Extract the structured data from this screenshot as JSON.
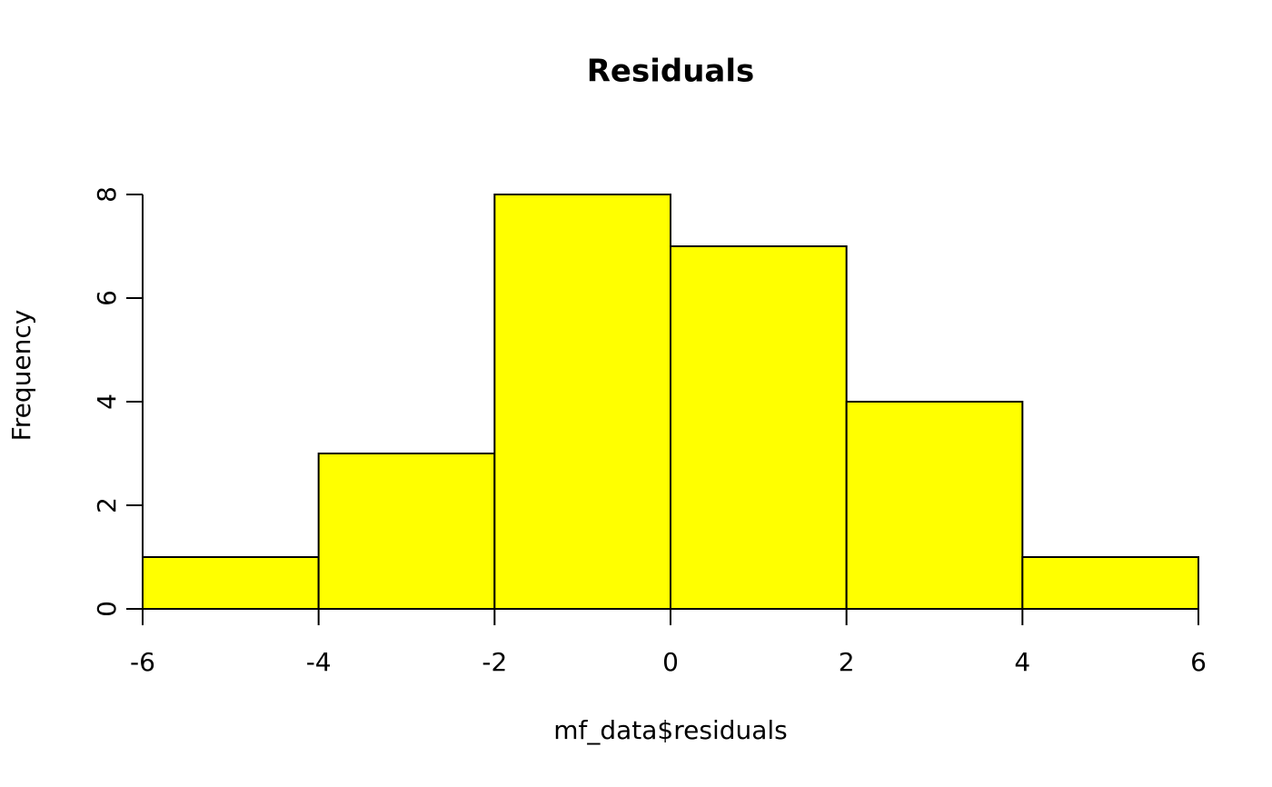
{
  "chart_data": {
    "type": "histogram",
    "title": "Residuals",
    "x_label": "mf_data$residuals",
    "y_label": "Frequency",
    "bins": [
      -6,
      -4,
      -2,
      0,
      2,
      4,
      6
    ],
    "counts": [
      1,
      3,
      8,
      7,
      4,
      1
    ],
    "color": "#ffff00",
    "xlim": [
      -6,
      6
    ],
    "xticks": [
      -6,
      -4,
      -2,
      0,
      2,
      4,
      6
    ],
    "ylim": [
      0,
      8
    ],
    "yticks": [
      0,
      2,
      4,
      6,
      8
    ]
  }
}
